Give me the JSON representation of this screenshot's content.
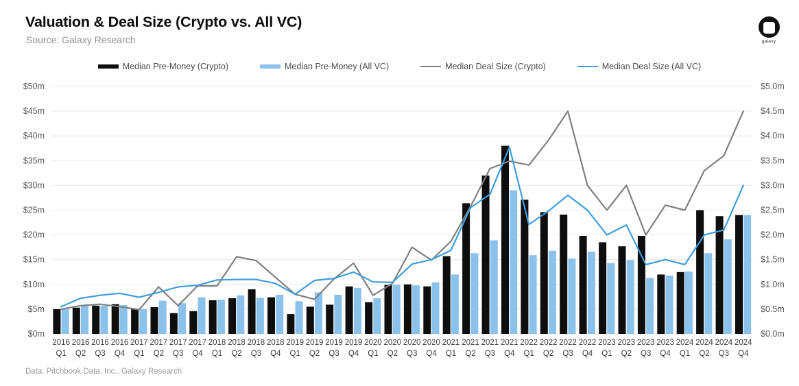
{
  "header": {
    "title": "Valuation & Deal Size (Crypto vs. All VC)",
    "subtitle": "Source: Galaxy Research",
    "logo_text": "galaxy"
  },
  "footer": {
    "note": "Data: Pitchbook Data, Inc., Galaxy Research"
  },
  "chart_data": {
    "type": "bar+line combo",
    "title": "Valuation & Deal Size (Crypto vs. All VC)",
    "grid": true,
    "legend_position": "top",
    "categories": [
      "2016 Q1",
      "2016 Q2",
      "2016 Q3",
      "2016 Q4",
      "2017 Q1",
      "2017 Q2",
      "2017 Q3",
      "2017 Q4",
      "2018 Q1",
      "2018 Q2",
      "2018 Q3",
      "2018 Q4",
      "2019 Q1",
      "2019 Q2",
      "2019 Q3",
      "2019 Q4",
      "2020 Q1",
      "2020 Q2",
      "2020 Q3",
      "2020 Q4",
      "2021 Q1",
      "2021 Q2",
      "2021 Q3",
      "2021 Q4",
      "2022 Q1",
      "2022 Q2",
      "2022 Q3",
      "2022 Q4",
      "2023 Q1",
      "2023 Q2",
      "2023 Q3",
      "2023 Q4",
      "2024 Q1",
      "2024 Q2",
      "2024 Q3",
      "2024 Q4"
    ],
    "y_left": {
      "min": 0,
      "max": 50,
      "step": 5,
      "unit": "$m",
      "tick_labels": [
        "$0m",
        "$5m",
        "$10m",
        "$15m",
        "$20m",
        "$25m",
        "$30m",
        "$35m",
        "$40m",
        "$45m",
        "$50m"
      ]
    },
    "y_right": {
      "min": 0,
      "max": 5,
      "step": 0.5,
      "unit": "$m",
      "tick_labels": [
        "$0.0m",
        "$0.5m",
        "$1.0m",
        "$1.5m",
        "$2.0m",
        "$2.5m",
        "$3.0m",
        "$3.5m",
        "$4.0m",
        "$4.5m",
        "$5.0m"
      ]
    },
    "series": [
      {
        "name": "Median Pre-Money (Crypto)",
        "type": "bar",
        "axis": "left",
        "color": "#0e0e0e",
        "values": [
          5.0,
          5.3,
          5.7,
          6.0,
          5.0,
          5.4,
          4.2,
          4.6,
          6.8,
          7.2,
          9.0,
          7.4,
          4.0,
          5.5,
          5.9,
          9.6,
          6.4,
          9.9,
          10.0,
          9.6,
          15.7,
          26.4,
          32.0,
          38.0,
          27.1,
          24.6,
          24.1,
          19.8,
          18.5,
          17.7,
          19.8,
          12.0,
          12.5,
          25.0,
          23.8,
          24.0
        ]
      },
      {
        "name": "Median Pre-Money (All VC)",
        "type": "bar",
        "axis": "left",
        "color": "#8ac2ec",
        "values": [
          5.0,
          5.8,
          5.7,
          5.8,
          5.0,
          6.7,
          6.2,
          7.4,
          6.9,
          7.8,
          7.3,
          7.9,
          6.6,
          8.4,
          7.9,
          9.3,
          7.2,
          9.9,
          9.8,
          10.4,
          12.0,
          16.3,
          18.9,
          29.0,
          15.9,
          16.8,
          15.2,
          16.6,
          14.3,
          14.9,
          11.3,
          11.8,
          12.6,
          16.3,
          19.1,
          24.0
        ]
      },
      {
        "name": "Median Deal Size (Crypto)",
        "type": "line",
        "axis": "right",
        "color": "#7f7f7f",
        "values": [
          0.5,
          0.57,
          0.6,
          0.55,
          0.49,
          0.95,
          0.57,
          0.97,
          0.97,
          1.56,
          1.48,
          1.14,
          0.8,
          0.7,
          1.11,
          1.43,
          0.78,
          1.02,
          1.75,
          1.49,
          1.87,
          2.57,
          3.34,
          3.49,
          3.41,
          3.91,
          4.5,
          3.0,
          2.5,
          3.0,
          2.0,
          2.6,
          2.5,
          3.3,
          3.6,
          4.5
        ]
      },
      {
        "name": "Median Deal Size (All VC)",
        "type": "line",
        "axis": "right",
        "color": "#3c9ede",
        "values": [
          0.55,
          0.72,
          0.78,
          0.82,
          0.74,
          0.84,
          0.95,
          0.98,
          1.09,
          1.1,
          1.1,
          1.02,
          0.8,
          1.08,
          1.12,
          1.25,
          1.05,
          1.04,
          1.41,
          1.5,
          1.69,
          2.55,
          2.82,
          3.77,
          2.21,
          2.48,
          2.8,
          2.5,
          2.0,
          2.2,
          1.4,
          1.5,
          1.4,
          2.0,
          2.1,
          3.0
        ]
      }
    ]
  }
}
